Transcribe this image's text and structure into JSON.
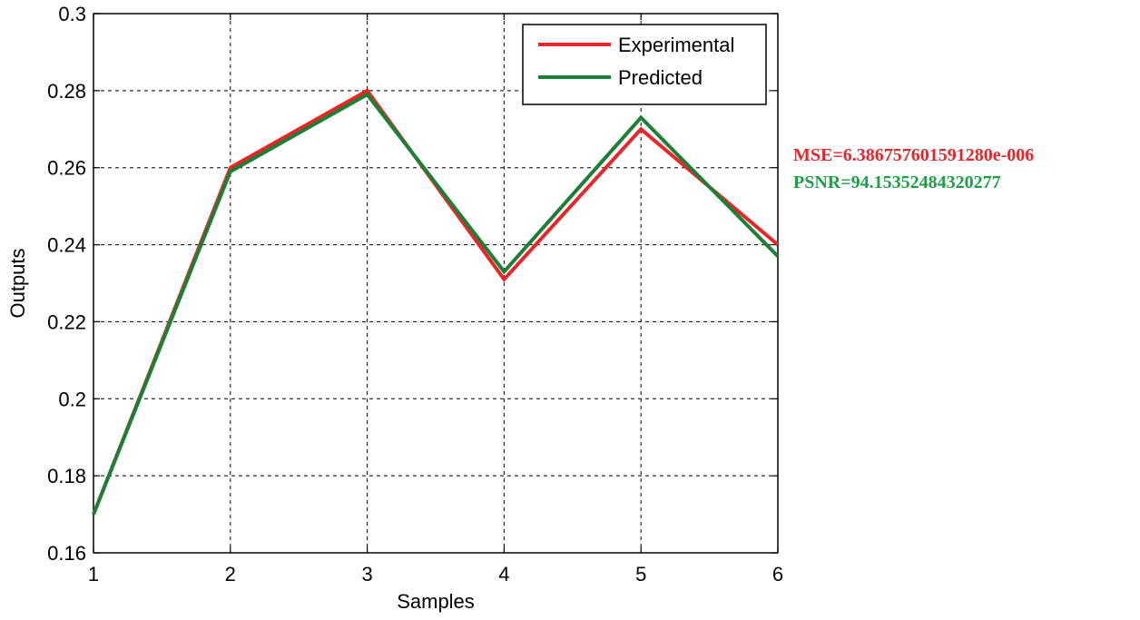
{
  "chart_data": {
    "type": "line",
    "title": "",
    "xlabel": "Samples",
    "ylabel": "Outputs",
    "x": [
      1,
      2,
      3,
      4,
      5,
      6
    ],
    "xlim": [
      1,
      6
    ],
    "ylim": [
      0.16,
      0.3
    ],
    "xticks": [
      "1",
      "2",
      "3",
      "4",
      "5",
      "6"
    ],
    "yticks": [
      "0.16",
      "0.18",
      "0.2",
      "0.22",
      "0.24",
      "0.26",
      "0.28",
      "0.3"
    ],
    "grid": true,
    "legend_position": "top-right",
    "series": [
      {
        "name": "Experimental",
        "color": "#e8262a",
        "values": [
          0.17,
          0.26,
          0.28,
          0.231,
          0.27,
          0.24
        ]
      },
      {
        "name": "Predicted",
        "color": "#1b7f35",
        "values": [
          0.17,
          0.259,
          0.279,
          0.233,
          0.273,
          0.237
        ]
      }
    ],
    "annotations": [
      {
        "text": "MSE=6.386757601591280e-006",
        "color": "#e8262a"
      },
      {
        "text": "PSNR=94.15352484320277",
        "color": "#1e9e47"
      }
    ]
  }
}
